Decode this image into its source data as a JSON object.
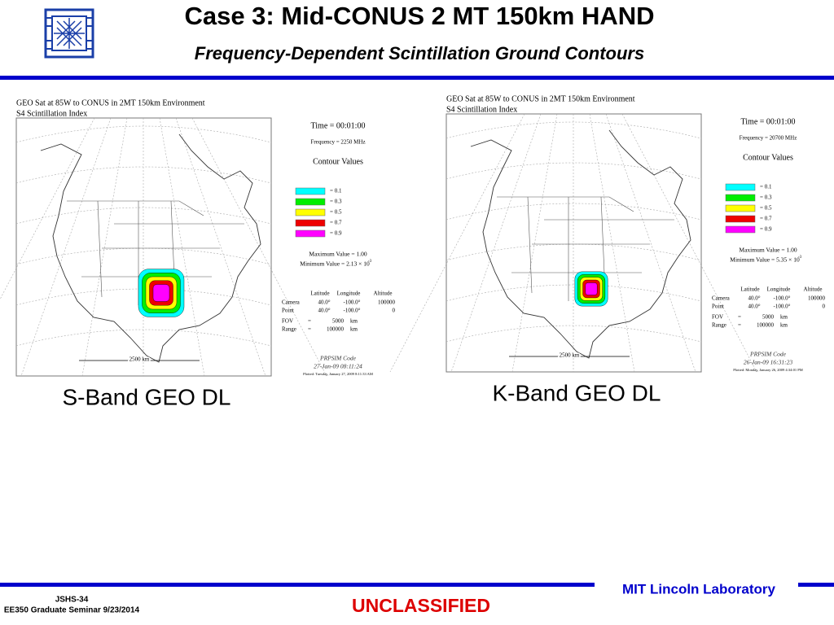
{
  "header": {
    "title": "Case 3: Mid-CONUS 2 MT 150km HAND",
    "subtitle": "Frequency-Dependent Scintillation Ground Contours"
  },
  "panels": [
    {
      "title_lines": [
        "GEO Sat at 85W to CONUS in 2MT 150km Environment",
        "S4 Scintillation Index"
      ],
      "time": "Time = 00:01:00",
      "frequency": "Frequency = 2250 MHz",
      "contour_heading": "Contour Values",
      "legend": [
        {
          "label": "= 0.1",
          "color": "#00ffff"
        },
        {
          "label": "= 0.3",
          "color": "#00ee00"
        },
        {
          "label": "= 0.5",
          "color": "#ffff00"
        },
        {
          "label": "= 0.7",
          "color": "#ee0000"
        },
        {
          "label": "= 0.9",
          "color": "#ff00ff"
        }
      ],
      "max_value": "Maximum Value = 1.00",
      "min_value": "Minimum Value = 2.13 × 10",
      "min_exponent": "-3",
      "position_header": [
        "Latitude",
        "Longitude",
        "Altitude"
      ],
      "position_rows": [
        [
          "Camera",
          "40.0°",
          "-100.0°",
          "100000"
        ],
        [
          "Point",
          "40.0°",
          "-100.0°",
          "0"
        ]
      ],
      "view_rows": [
        [
          "FOV",
          "=",
          "5000",
          "km"
        ],
        [
          "Range",
          "=",
          "100000",
          "km"
        ]
      ],
      "code": "PRPSIM Code",
      "run_date": "27-Jan-09 08:11:24",
      "plotted": "Plotted: Tuesday, January 27, 2009  8:11:33 AM",
      "scale": "2500 km",
      "caption": "S-Band GEO DL"
    },
    {
      "title_lines": [
        "GEO Sat at 85W to CONUS in 2MT 150km Environment",
        "S4 Scintillation Index"
      ],
      "time": "Time = 00:01:00",
      "frequency": "Frequency = 20700 MHz",
      "contour_heading": "Contour Values",
      "legend": [
        {
          "label": "= 0.1",
          "color": "#00ffff"
        },
        {
          "label": "= 0.3",
          "color": "#00ee00"
        },
        {
          "label": "= 0.5",
          "color": "#ffff00"
        },
        {
          "label": "= 0.7",
          "color": "#ee0000"
        },
        {
          "label": "= 0.9",
          "color": "#ff00ff"
        }
      ],
      "max_value": "Maximum Value = 1.00",
      "min_value": "Minimum Value = 5.35 × 10",
      "min_exponent": "-3",
      "position_header": [
        "Latitude",
        "Longitude",
        "Altitude"
      ],
      "position_rows": [
        [
          "Camera",
          "40.0°",
          "-100.0°",
          "100000"
        ],
        [
          "Point",
          "40.0°",
          "-100.0°",
          "0"
        ]
      ],
      "view_rows": [
        [
          "FOV",
          "=",
          "5000",
          "km"
        ],
        [
          "Range",
          "=",
          "100000",
          "km"
        ]
      ],
      "code": "PRPSIM Code",
      "run_date": "26-Jan-09 16:31:23",
      "plotted": "Plotted: Monday, January 26, 2009  4:34:01 PM",
      "scale": "2500 km",
      "caption": "K-Band GEO DL"
    }
  ],
  "footer": {
    "slide_id": "JSHS-34",
    "seminar": "EE350 Graduate Seminar 9/23/2014",
    "classification": "UNCLASSIFIED",
    "organization": "MIT Lincoln Laboratory"
  }
}
